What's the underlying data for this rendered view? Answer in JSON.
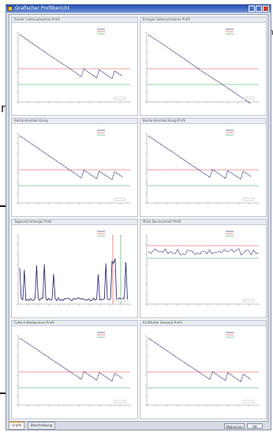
{
  "window": {
    "title": "Grafischer Profilbericht"
  },
  "page_glyphs": [
    "n",
    "m"
  ],
  "tabs": [
    {
      "label": "Grafik"
    },
    {
      "label": "Beschreibung"
    }
  ],
  "buttons": {
    "previous": "Abbrechen",
    "ok": "OK"
  },
  "colors": {
    "series": "#1a1a6e",
    "upper_limit": "#e0403a",
    "lower_limit": "#2fa84a",
    "titlebar": "#1f4bb0"
  },
  "panels": [
    {
      "title": "Rinder Futteraufnahme Profil",
      "ytop": "50 (kg)"
    },
    {
      "title": "Energie Futteraufnahme Profil",
      "ytop": "50 (kg)"
    },
    {
      "title": "Bestandsentwicklung",
      "ytop": "50 (kg)"
    },
    {
      "title": "Bestandsentwicklung Profil",
      "ytop": "50 (kg)"
    },
    {
      "title": "Tagesmilchmenge Profil",
      "ytop": "kg/Tag"
    },
    {
      "title": "Milch Durchschnitt Profil",
      "ytop": "kg/Tag"
    },
    {
      "title": "Futtermittelbestand Profil",
      "ytop": "50 (kg)"
    },
    {
      "title": "Kraftfutter Bestand Profil",
      "ytop": "50 (kg)"
    }
  ]
}
